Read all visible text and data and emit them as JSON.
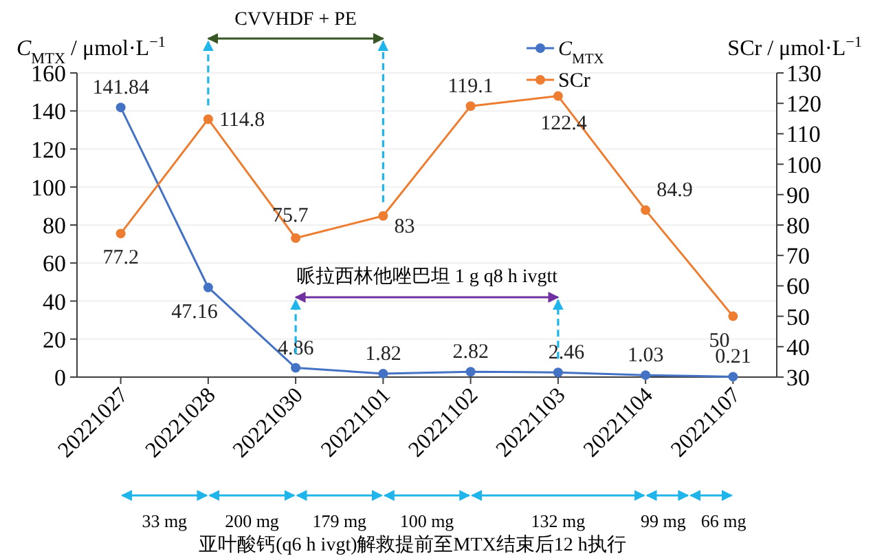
{
  "chart_data": {
    "type": "line",
    "ylabel": "*C*$_{MTX}$ / μmol·L$^{−1}$",
    "y2label": "SCr / μmol·L$^{−1}$",
    "categories": [
      "20221027",
      "20221028",
      "20221030",
      "20221101",
      "20221102",
      "20221103",
      "20221104",
      "20221107"
    ],
    "series": [
      {
        "name": "*C*$_{MTX}$",
        "color": "#4472c4",
        "values": [
          141.84,
          47.16,
          4.86,
          1.82,
          2.82,
          2.46,
          1.03,
          0.21
        ]
      },
      {
        "name": "SCr",
        "color": "#ed7d31",
        "axis": "y2",
        "values": [
          77.2,
          114.8,
          75.7,
          83,
          119.1,
          122.4,
          84.9,
          50
        ]
      }
    ],
    "data_labels": true,
    "ylim": [
      0,
      160
    ],
    "yticks": [
      0,
      20,
      40,
      60,
      80,
      100,
      120,
      140,
      160
    ],
    "y2lim": [
      30,
      130
    ],
    "y2ticks": [
      30,
      40,
      50,
      60,
      70,
      80,
      90,
      100,
      110,
      120,
      130
    ],
    "grid": "y",
    "legend": "top",
    "marker": "circle",
    "line_style": "solid",
    "annotations": [
      "CVVHDF + PE",
      "哌拉西林他唑巴坦 1 g q8 h ivgtt",
      "33 mg",
      "200 mg",
      "179 mg",
      "100 mg",
      "132 mg",
      "99 mg",
      "66 mg",
      "亚叶酸钙(q6 h ivgt)解救提前至MTX结束后12 h执行"
    ]
  }
}
